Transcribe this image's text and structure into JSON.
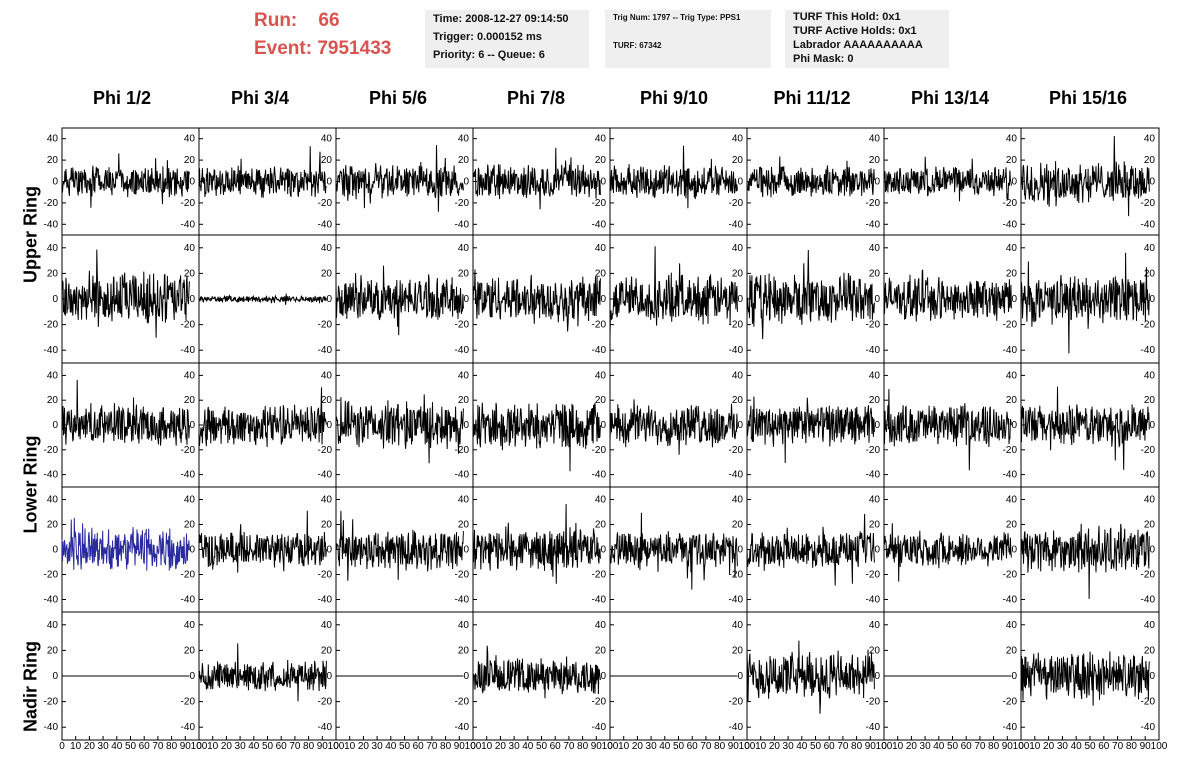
{
  "header": {
    "run_label": "Run:",
    "run_value": "66",
    "event_label": "Event:",
    "event_value": "7951433"
  },
  "info_box_1": {
    "line1": "Time: 2008-12-27 09:14:50",
    "line2": "Trigger: 0.000152 ms",
    "line3": "Priority: 6 -- Queue: 6"
  },
  "info_box_2": {
    "line1": "Trig Num: 1797 -- Trig Type: PPS1",
    "line2": "TURF: 67342"
  },
  "info_box_3": {
    "line1": "TURF This Hold: 0x1",
    "line2": "TURF Active Holds: 0x1",
    "line3": "Labrador AAAAAAAAAA",
    "line4": "Phi Mask: 0"
  },
  "columns": [
    "Phi 1/2",
    "Phi 3/4",
    "Phi 5/6",
    "Phi 7/8",
    "Phi 9/10",
    "Phi 11/12",
    "Phi 13/14",
    "Phi 15/16"
  ],
  "ring_labels": [
    "Upper Ring",
    "Lower Ring",
    "Nadir Ring"
  ],
  "colors": {
    "trace": "#000000",
    "highlight_trace": "#2a2aa0",
    "header_red": "#d9534f",
    "info_bg": "#efefef"
  },
  "chart_data": {
    "type": "line",
    "description_rows": 5,
    "xlim": [
      0,
      100
    ],
    "ylim": [
      -50,
      50
    ],
    "x_ticks": [
      "0",
      "10",
      "20",
      "30",
      "40",
      "50",
      "60",
      "70",
      "80",
      "90",
      "100"
    ],
    "y_ticks": [
      "40",
      "20",
      "0",
      "-20",
      "-40"
    ],
    "samples": 260,
    "x_max_sample": 93,
    "amplitudes": [
      [
        12,
        12,
        13,
        14,
        13,
        12,
        12,
        16
      ],
      [
        18,
        2,
        14,
        16,
        16,
        17,
        14,
        16
      ],
      [
        14,
        14,
        16,
        16,
        14,
        14,
        14,
        14
      ],
      [
        15,
        12,
        14,
        14,
        12,
        12,
        12,
        16
      ],
      [
        0,
        10,
        0,
        12,
        0,
        16,
        0,
        16
      ]
    ],
    "highlight": {
      "row": 3,
      "col": 0
    }
  }
}
